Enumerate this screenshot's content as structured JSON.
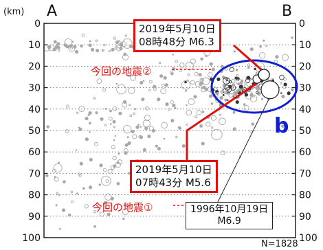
{
  "chart_data": {
    "type": "scatter",
    "corner_labels": {
      "left": "A",
      "right": "B"
    },
    "y_unit": "(km)",
    "ylim": [
      0,
      100
    ],
    "y_inverted": true,
    "yticks": [
      "0",
      "10",
      "20",
      "30",
      "40",
      "50",
      "60",
      "70",
      "80",
      "90",
      "100"
    ],
    "grid": "dotted horizontal",
    "count_label": "N=1828",
    "region_label": "b",
    "colors": {
      "highlight": "#e01010",
      "region": "#1020d0",
      "points": "#a8a8a8"
    },
    "events": [
      {
        "date_line": "2019年5月10日",
        "detail_line": "08時48分  M6.3",
        "name": "今回の地震②",
        "depth": 24
      },
      {
        "date_line": "2019年5月10日",
        "detail_line": "07時43分  M5.6",
        "name": "今回の地震①",
        "depth": 26
      },
      {
        "date_line": "1996年10月19日",
        "detail_line": "M6.9",
        "depth": 31
      }
    ]
  }
}
